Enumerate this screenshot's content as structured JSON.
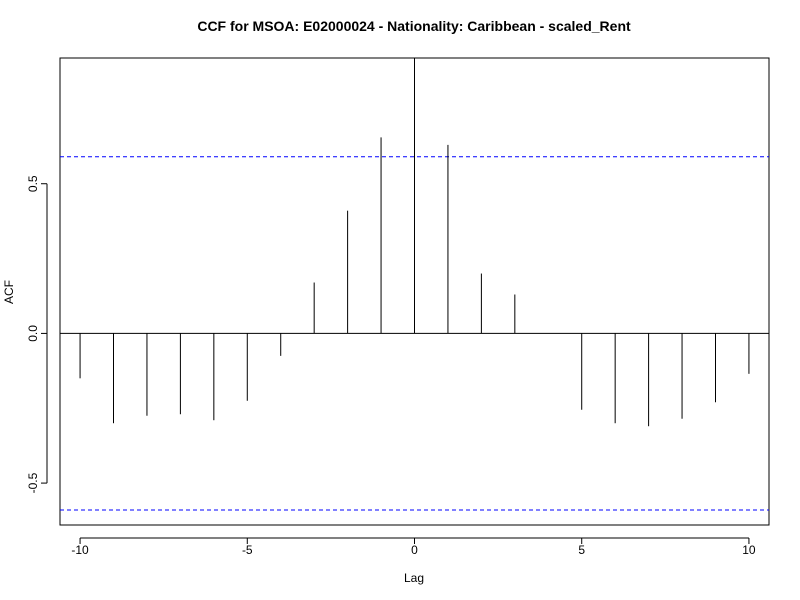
{
  "chart_data": {
    "type": "bar",
    "title": "CCF for MSOA: E02000024 - Nationality: Caribbean - scaled_Rent",
    "xlabel": "Lag",
    "ylabel": "ACF",
    "xlim": [
      -10.6,
      10.6
    ],
    "ylim": [
      -0.64,
      0.92
    ],
    "x_ticks": [
      -10,
      -5,
      0,
      5,
      10
    ],
    "y_ticks": [
      -0.5,
      0.0,
      0.5
    ],
    "y_tick_labels": [
      "-0.5",
      "0.0",
      "0.5"
    ],
    "x_tick_labels": [
      "-10",
      "-5",
      "0",
      "5",
      "10"
    ],
    "confidence_bound": 0.59,
    "confidence_color": "#0000ff",
    "spike_color": "#000000",
    "lags": [
      -10,
      -9,
      -8,
      -7,
      -6,
      -5,
      -4,
      -3,
      -2,
      -1,
      0,
      1,
      2,
      3,
      4,
      5,
      6,
      7,
      8,
      9,
      10
    ],
    "values": [
      -0.15,
      -0.3,
      -0.275,
      -0.27,
      -0.29,
      -0.225,
      -0.075,
      0.17,
      0.41,
      0.655,
      0.92,
      0.63,
      0.2,
      0.13,
      0.0,
      -0.255,
      -0.3,
      -0.31,
      -0.285,
      -0.23,
      -0.135
    ],
    "grid": false,
    "legend": "none"
  }
}
